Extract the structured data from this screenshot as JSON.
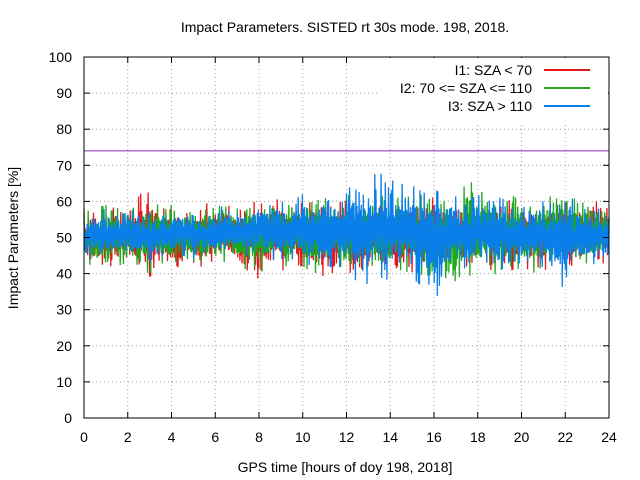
{
  "chart_data": {
    "type": "line",
    "title": "Impact Parameters. SISTED rt 30s mode. 198, 2018.",
    "xlabel": "GPS time [hours of doy 198, 2018]",
    "ylabel": "Impact Parameters [%]",
    "xlim": [
      0,
      24
    ],
    "ylim": [
      0,
      100
    ],
    "x_ticks": [
      "0",
      "2",
      "4",
      "6",
      "8",
      "10",
      "12",
      "14",
      "16",
      "18",
      "20",
      "22",
      "24"
    ],
    "y_ticks": [
      "0",
      "10",
      "20",
      "30",
      "40",
      "50",
      "60",
      "70",
      "80",
      "90",
      "100"
    ],
    "grid": true,
    "legend_position": "top-right",
    "threshold_line": {
      "value": 74,
      "color": "#8b2fb8"
    },
    "series": [
      {
        "name": "I1: SZA < 70",
        "color": "#e31a1c",
        "x": [
          0,
          0.5,
          1,
          1.5,
          2,
          2.5,
          2.8,
          3,
          3.5,
          4,
          4.5,
          5,
          5.5,
          6,
          6.5,
          7,
          7.5,
          8,
          8.5,
          9,
          9.5,
          10,
          10.5,
          11,
          11.5,
          12,
          12.5,
          13,
          13.5,
          14,
          14.5,
          15,
          15.5,
          16,
          16.5,
          17,
          17.5,
          18,
          18.5,
          19,
          19.5,
          20,
          20.5,
          21,
          21.5,
          22,
          22.5,
          23,
          23.5,
          24
        ],
        "low": [
          42,
          41,
          43,
          41,
          40,
          41,
          39,
          40,
          41,
          40,
          42,
          41,
          42,
          43,
          41,
          40,
          38,
          41,
          42,
          40,
          41,
          40,
          39,
          40,
          41,
          40,
          39,
          40,
          41,
          40,
          41,
          40,
          42,
          41,
          40,
          41,
          40,
          42,
          41,
          40,
          41,
          42,
          40,
          41,
          42,
          41,
          40,
          41,
          42,
          41
        ],
        "high": [
          58,
          59,
          58,
          60,
          59,
          61,
          65,
          60,
          59,
          60,
          58,
          59,
          60,
          61,
          60,
          59,
          60,
          59,
          62,
          60,
          59,
          61,
          65,
          60,
          61,
          59,
          60,
          61,
          62,
          60,
          59,
          61,
          60,
          62,
          61,
          60,
          61,
          60,
          62,
          61,
          60,
          59,
          61,
          60,
          62,
          61,
          60,
          62,
          61,
          60
        ]
      },
      {
        "name": "I2: 70 <= SZA <= 110",
        "color": "#1fa81f",
        "x": [
          0,
          0.5,
          1,
          1.5,
          2,
          2.5,
          3,
          3.5,
          4,
          4.5,
          5,
          5.5,
          6,
          6.5,
          7,
          7.5,
          8,
          8.5,
          9,
          9.5,
          10,
          10.5,
          11,
          11.5,
          12,
          12.5,
          13,
          13.5,
          14,
          14.5,
          15,
          15.5,
          16,
          16.5,
          17,
          17.5,
          18,
          18.5,
          19,
          19.5,
          20,
          20.5,
          21,
          21.5,
          22,
          22.5,
          23,
          23.5,
          24
        ],
        "low": [
          43,
          42,
          41,
          42,
          43,
          41,
          40,
          42,
          41,
          43,
          42,
          41,
          44,
          43,
          42,
          41,
          40,
          42,
          43,
          41,
          42,
          40,
          41,
          40,
          39,
          41,
          40,
          42,
          39,
          41,
          40,
          38,
          37,
          39,
          35,
          40,
          38,
          41,
          39,
          42,
          41,
          40,
          42,
          41,
          42,
          40,
          41,
          42,
          43
        ],
        "high": [
          57,
          58,
          59,
          58,
          60,
          59,
          62,
          60,
          59,
          58,
          60,
          59,
          58,
          60,
          59,
          61,
          60,
          59,
          61,
          60,
          59,
          60,
          61,
          60,
          62,
          61,
          60,
          61,
          63,
          62,
          61,
          62,
          64,
          63,
          62,
          67,
          63,
          62,
          61,
          62,
          60,
          61,
          62,
          61,
          60,
          61,
          62,
          61,
          60
        ]
      },
      {
        "name": "I3: SZA > 110",
        "color": "#0a7fea",
        "x": [
          0,
          0.5,
          1,
          1.5,
          2,
          2.5,
          3,
          3.5,
          4,
          4.5,
          5,
          5.5,
          6,
          6.5,
          7,
          7.5,
          8,
          8.5,
          9,
          9.5,
          10,
          10.5,
          11,
          11.5,
          12,
          12.5,
          13,
          13.5,
          14,
          14.5,
          15,
          15.5,
          16,
          16.5,
          17,
          17.5,
          18,
          18.5,
          19,
          19.5,
          20,
          20.5,
          21,
          21.5,
          22,
          22.5,
          23,
          23.5,
          24
        ],
        "low": [
          44,
          45,
          43,
          44,
          45,
          44,
          43,
          45,
          44,
          45,
          44,
          45,
          44,
          45,
          46,
          44,
          45,
          44,
          43,
          44,
          43,
          42,
          41,
          40,
          39,
          38,
          37,
          39,
          38,
          40,
          39,
          36,
          32,
          38,
          40,
          39,
          41,
          40,
          41,
          42,
          43,
          41,
          42,
          40,
          35,
          41,
          42,
          43,
          44
        ],
        "high": [
          56,
          57,
          58,
          57,
          58,
          57,
          58,
          57,
          58,
          59,
          58,
          57,
          58,
          59,
          58,
          59,
          60,
          59,
          61,
          60,
          62,
          61,
          63,
          64,
          66,
          65,
          67,
          68,
          66,
          65,
          64,
          65,
          66,
          63,
          64,
          62,
          63,
          62,
          61,
          60,
          59,
          61,
          60,
          59,
          62,
          60,
          59,
          58,
          57
        ]
      }
    ]
  }
}
